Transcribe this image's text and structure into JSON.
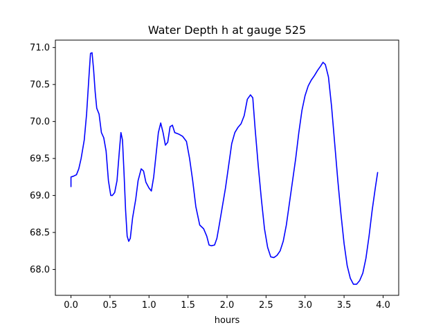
{
  "chart_data": {
    "type": "line",
    "title": "Water Depth h at gauge 525",
    "xlabel": "hours",
    "ylabel": "",
    "xlim": [
      -0.2,
      4.2
    ],
    "ylim": [
      67.65,
      71.1
    ],
    "xticks": [
      {
        "value": 0.0,
        "label": "0.0"
      },
      {
        "value": 0.5,
        "label": "0.5"
      },
      {
        "value": 1.0,
        "label": "1.0"
      },
      {
        "value": 1.5,
        "label": "1.5"
      },
      {
        "value": 2.0,
        "label": "2.0"
      },
      {
        "value": 2.5,
        "label": "2.5"
      },
      {
        "value": 3.0,
        "label": "3.0"
      },
      {
        "value": 3.5,
        "label": "3.5"
      },
      {
        "value": 4.0,
        "label": "4.0"
      }
    ],
    "yticks": [
      {
        "value": 68.0,
        "label": "68.0"
      },
      {
        "value": 68.5,
        "label": "68.5"
      },
      {
        "value": 69.0,
        "label": "69.0"
      },
      {
        "value": 69.5,
        "label": "69.5"
      },
      {
        "value": 70.0,
        "label": "70.0"
      },
      {
        "value": 70.5,
        "label": "70.5"
      },
      {
        "value": 71.0,
        "label": "71.0"
      }
    ],
    "grid": false,
    "series": [
      {
        "color": "#0000ff",
        "points": [
          [
            0.0,
            69.12
          ],
          [
            0.0,
            69.25
          ],
          [
            0.03,
            69.26
          ],
          [
            0.07,
            69.28
          ],
          [
            0.1,
            69.36
          ],
          [
            0.13,
            69.5
          ],
          [
            0.17,
            69.75
          ],
          [
            0.2,
            70.1
          ],
          [
            0.23,
            70.6
          ],
          [
            0.25,
            70.92
          ],
          [
            0.27,
            70.93
          ],
          [
            0.29,
            70.7
          ],
          [
            0.31,
            70.4
          ],
          [
            0.33,
            70.18
          ],
          [
            0.36,
            70.1
          ],
          [
            0.39,
            69.85
          ],
          [
            0.42,
            69.78
          ],
          [
            0.45,
            69.6
          ],
          [
            0.48,
            69.2
          ],
          [
            0.51,
            69.0
          ],
          [
            0.53,
            69.0
          ],
          [
            0.56,
            69.04
          ],
          [
            0.59,
            69.2
          ],
          [
            0.62,
            69.6
          ],
          [
            0.64,
            69.85
          ],
          [
            0.66,
            69.75
          ],
          [
            0.68,
            69.3
          ],
          [
            0.7,
            68.8
          ],
          [
            0.72,
            68.45
          ],
          [
            0.74,
            68.38
          ],
          [
            0.76,
            68.42
          ],
          [
            0.79,
            68.7
          ],
          [
            0.83,
            68.95
          ],
          [
            0.86,
            69.2
          ],
          [
            0.9,
            69.36
          ],
          [
            0.93,
            69.33
          ],
          [
            0.96,
            69.18
          ],
          [
            1.0,
            69.1
          ],
          [
            1.03,
            69.06
          ],
          [
            1.06,
            69.25
          ],
          [
            1.09,
            69.55
          ],
          [
            1.12,
            69.85
          ],
          [
            1.15,
            69.98
          ],
          [
            1.18,
            69.85
          ],
          [
            1.21,
            69.68
          ],
          [
            1.24,
            69.72
          ],
          [
            1.27,
            69.93
          ],
          [
            1.3,
            69.95
          ],
          [
            1.33,
            69.85
          ],
          [
            1.38,
            69.83
          ],
          [
            1.43,
            69.8
          ],
          [
            1.48,
            69.73
          ],
          [
            1.52,
            69.5
          ],
          [
            1.56,
            69.2
          ],
          [
            1.6,
            68.85
          ],
          [
            1.65,
            68.6
          ],
          [
            1.7,
            68.55
          ],
          [
            1.74,
            68.45
          ],
          [
            1.77,
            68.33
          ],
          [
            1.8,
            68.32
          ],
          [
            1.84,
            68.33
          ],
          [
            1.87,
            68.42
          ],
          [
            1.9,
            68.6
          ],
          [
            1.94,
            68.85
          ],
          [
            1.98,
            69.1
          ],
          [
            2.02,
            69.4
          ],
          [
            2.06,
            69.7
          ],
          [
            2.1,
            69.85
          ],
          [
            2.14,
            69.92
          ],
          [
            2.18,
            69.97
          ],
          [
            2.22,
            70.08
          ],
          [
            2.26,
            70.3
          ],
          [
            2.3,
            70.36
          ],
          [
            2.33,
            70.32
          ],
          [
            2.36,
            69.9
          ],
          [
            2.4,
            69.4
          ],
          [
            2.44,
            68.95
          ],
          [
            2.48,
            68.55
          ],
          [
            2.52,
            68.3
          ],
          [
            2.56,
            68.17
          ],
          [
            2.6,
            68.16
          ],
          [
            2.64,
            68.19
          ],
          [
            2.68,
            68.25
          ],
          [
            2.72,
            68.38
          ],
          [
            2.76,
            68.6
          ],
          [
            2.8,
            68.9
          ],
          [
            2.84,
            69.2
          ],
          [
            2.88,
            69.5
          ],
          [
            2.92,
            69.85
          ],
          [
            2.96,
            70.15
          ],
          [
            3.0,
            70.35
          ],
          [
            3.04,
            70.48
          ],
          [
            3.08,
            70.56
          ],
          [
            3.12,
            70.62
          ],
          [
            3.16,
            70.69
          ],
          [
            3.2,
            70.75
          ],
          [
            3.23,
            70.8
          ],
          [
            3.26,
            70.77
          ],
          [
            3.3,
            70.6
          ],
          [
            3.34,
            70.2
          ],
          [
            3.38,
            69.7
          ],
          [
            3.42,
            69.2
          ],
          [
            3.46,
            68.75
          ],
          [
            3.5,
            68.35
          ],
          [
            3.54,
            68.05
          ],
          [
            3.58,
            67.88
          ],
          [
            3.62,
            67.8
          ],
          [
            3.66,
            67.8
          ],
          [
            3.7,
            67.85
          ],
          [
            3.74,
            67.95
          ],
          [
            3.78,
            68.15
          ],
          [
            3.82,
            68.45
          ],
          [
            3.86,
            68.8
          ],
          [
            3.9,
            69.1
          ],
          [
            3.93,
            69.31
          ]
        ]
      }
    ]
  }
}
